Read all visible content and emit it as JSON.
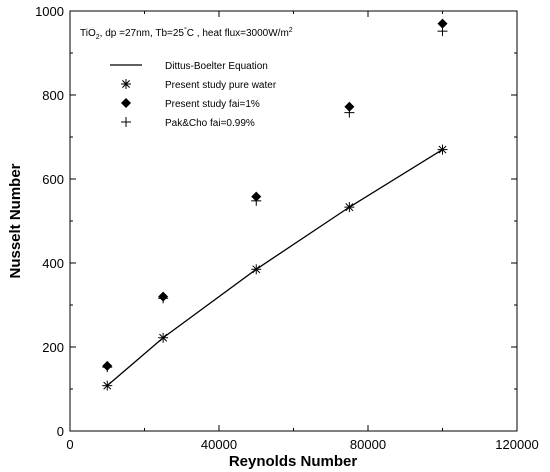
{
  "chart_data": {
    "type": "scatter",
    "title": "",
    "annotation": {
      "prefix": "TiO",
      "sub": "2",
      "middle": ", dp =27nm, Tb=25",
      "deg": "°",
      "after_deg": "C , heat flux=3000W/m",
      "sup": "2"
    },
    "xlabel": "Reynolds Number",
    "ylabel": "Nusselt Number",
    "xlim": [
      0,
      120000
    ],
    "ylim": [
      0,
      1000
    ],
    "xticks": [
      0,
      40000,
      80000,
      120000
    ],
    "yticks": [
      0,
      200,
      400,
      600,
      800,
      1000
    ],
    "legend_position": "top-left",
    "series": [
      {
        "name": "Dittus-Boelter Equation",
        "style": "line",
        "color": "#000000",
        "x": [
          10000,
          25000,
          50000,
          75000,
          100000
        ],
        "y": [
          108,
          222,
          385,
          533,
          670
        ]
      },
      {
        "name": "Present study pure water",
        "style": "asterisk",
        "color": "#000000",
        "x": [
          10000,
          25000,
          50000,
          75000,
          100000
        ],
        "y": [
          108,
          222,
          385,
          533,
          670
        ]
      },
      {
        "name": "Present study fai=1%",
        "style": "diamond",
        "color": "#000000",
        "x": [
          10000,
          25000,
          50000,
          75000,
          100000
        ],
        "y": [
          155,
          320,
          558,
          772,
          970
        ]
      },
      {
        "name": "Pak&Cho fai=0.99%",
        "style": "plus",
        "color": "#000000",
        "x": [
          10000,
          25000,
          50000,
          75000,
          100000
        ],
        "y": [
          152,
          316,
          548,
          758,
          952
        ]
      }
    ]
  }
}
